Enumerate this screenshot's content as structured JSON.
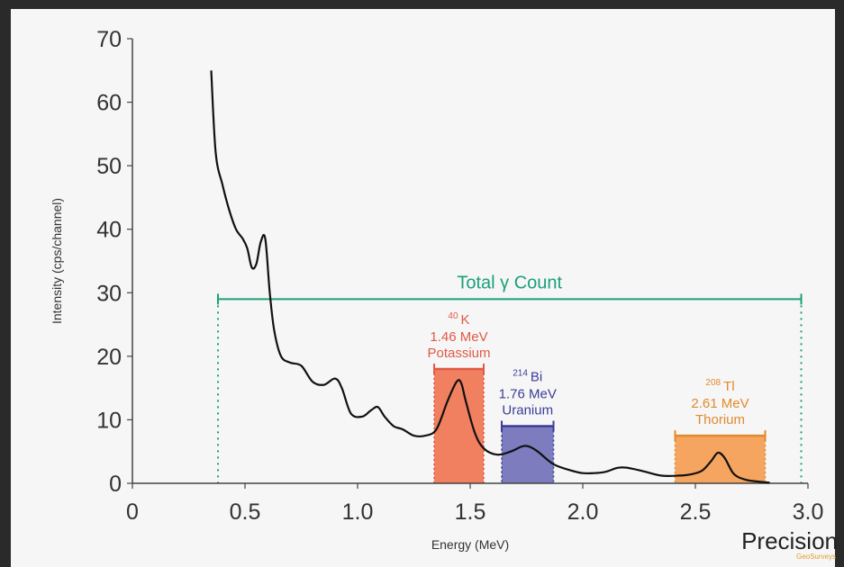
{
  "chart_data": {
    "type": "line",
    "xlabel": "Energy (MeV)",
    "ylabel": "Intensity (cps/channel)",
    "xlim": [
      0,
      3.0
    ],
    "ylim": [
      0,
      70
    ],
    "x_ticks": [
      "0",
      "0.5",
      "1.0",
      "1.5",
      "2.0",
      "2.5",
      "3.0"
    ],
    "y_ticks": [
      "0",
      "10",
      "20",
      "30",
      "40",
      "50",
      "60",
      "70"
    ],
    "grid": false,
    "series": [
      {
        "x": [
          0.35,
          0.37,
          0.4,
          0.43,
          0.46,
          0.49,
          0.51,
          0.53,
          0.55,
          0.57,
          0.59,
          0.61,
          0.63,
          0.66,
          0.7,
          0.75,
          0.8,
          0.85,
          0.9,
          0.93,
          0.97,
          1.02,
          1.06,
          1.09,
          1.12,
          1.16,
          1.2,
          1.25,
          1.3,
          1.35,
          1.4,
          1.44,
          1.46,
          1.48,
          1.52,
          1.56,
          1.62,
          1.68,
          1.73,
          1.76,
          1.8,
          1.87,
          1.95,
          2.0,
          2.05,
          2.1,
          2.15,
          2.18,
          2.22,
          2.28,
          2.35,
          2.42,
          2.48,
          2.53,
          2.57,
          2.6,
          2.63,
          2.67,
          2.72,
          2.77,
          2.83
        ],
        "y": [
          65,
          52,
          47,
          43,
          40,
          38.5,
          37,
          34,
          34.5,
          38,
          38.5,
          30,
          24,
          20,
          19,
          18.5,
          16,
          15.5,
          16.5,
          15,
          11,
          10.5,
          11.5,
          12,
          10.5,
          9,
          8.5,
          7.5,
          7.5,
          8.5,
          13,
          16,
          15.8,
          13,
          8,
          5.5,
          4.5,
          5,
          5.8,
          5.8,
          5,
          3,
          2,
          1.6,
          1.6,
          1.8,
          2.4,
          2.5,
          2.3,
          1.8,
          1.2,
          1.2,
          1.4,
          2,
          3.5,
          4.8,
          4,
          1.5,
          0.6,
          0.3,
          0.1
        ]
      }
    ],
    "total_count": {
      "label": "Total γ Count",
      "x_start": 0.38,
      "x_end": 2.97,
      "y": 29
    },
    "windows": [
      {
        "x_start": 1.34,
        "x_end": 1.56,
        "top": 18,
        "isotope_mass": "40",
        "isotope": "K",
        "energy": "1.46 MeV",
        "element": "Potassium",
        "color": "#e05a44",
        "fill": "#f08060"
      },
      {
        "x_start": 1.64,
        "x_end": 1.87,
        "top": 9,
        "isotope_mass": "214",
        "isotope": "Bi",
        "energy": "1.76 MeV",
        "element": "Uranium",
        "color": "#3c3c9a",
        "fill": "#7c7cbf"
      },
      {
        "x_start": 2.41,
        "x_end": 2.81,
        "top": 7.5,
        "isotope_mass": "208",
        "isotope": "Tl",
        "energy": "2.61 MeV",
        "element": "Thorium",
        "color": "#e08a2c",
        "fill": "#f5a560"
      }
    ],
    "colors": {
      "total_count": "#1aa07a",
      "curve": "#111111"
    }
  },
  "logo": {
    "text": "Precision",
    "subtext": "GeoSurveys"
  }
}
